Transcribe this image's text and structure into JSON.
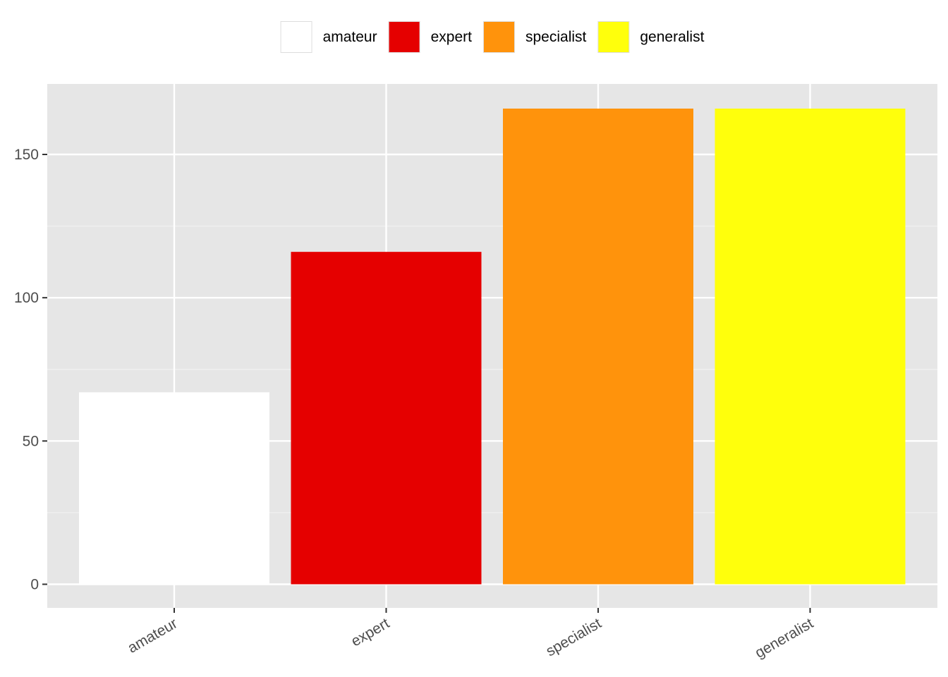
{
  "chart_data": {
    "type": "bar",
    "categories": [
      "amateur",
      "expert",
      "specialist",
      "generalist"
    ],
    "values": [
      67,
      116,
      166,
      166
    ],
    "colors": [
      "#ffffff",
      "#e50000",
      "#ff930c",
      "#ffff0c"
    ],
    "title": "",
    "xlabel": "",
    "ylabel": "",
    "ylim": [
      0,
      175
    ],
    "yticks": [
      0,
      50,
      100,
      150
    ],
    "grid": true,
    "legend": {
      "position": "top",
      "entries": [
        "amateur",
        "expert",
        "specialist",
        "generalist"
      ]
    }
  }
}
